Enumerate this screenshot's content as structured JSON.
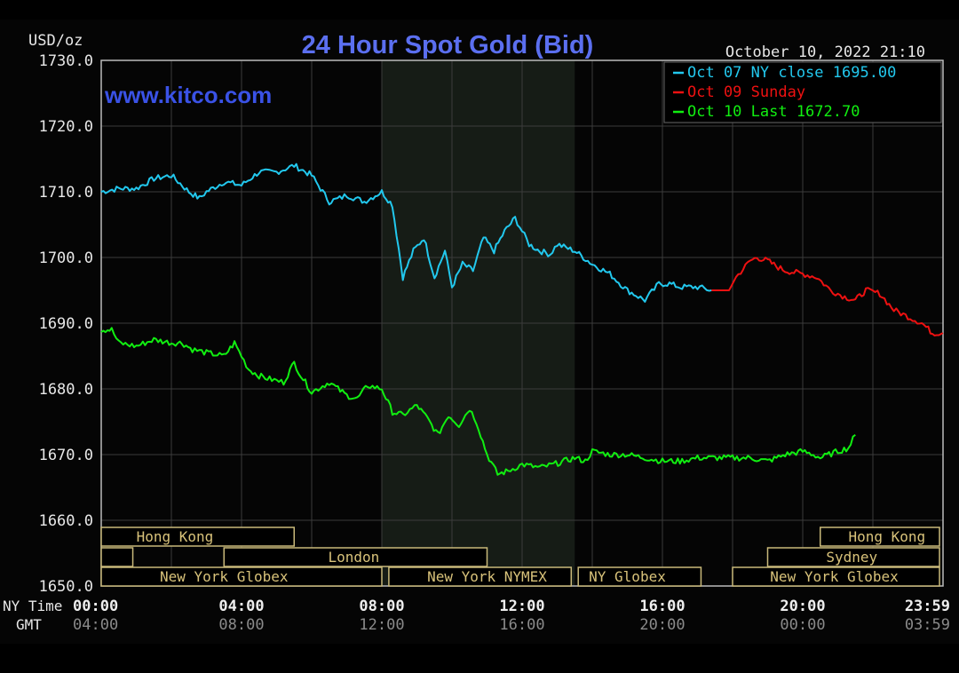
{
  "chart_data": {
    "type": "line",
    "title": "24 Hour Spot Gold (Bid)",
    "watermark": "www.kitco.com",
    "unit_label": "USD/oz",
    "timestamp": "October 10, 2022 21:10",
    "ylim": [
      1650,
      1730
    ],
    "y_ticks": [
      "1730.0",
      "1720.0",
      "1710.0",
      "1700.0",
      "1690.0",
      "1680.0",
      "1670.0",
      "1660.0",
      "1650.0"
    ],
    "x_range_hours": [
      0,
      24
    ],
    "x_row_labels": {
      "ny": "NY Time",
      "gmt": "GMT"
    },
    "x_ticks_ny": [
      "00:00",
      "04:00",
      "08:00",
      "12:00",
      "16:00",
      "20:00",
      "23:59"
    ],
    "x_ticks_gmt": [
      "04:00",
      "08:00",
      "12:00",
      "16:00",
      "20:00",
      "00:00",
      "03:59"
    ],
    "grid": true,
    "legend_position": "top-right",
    "legend": [
      {
        "label": "Oct 07 NY close 1695.00",
        "color": "#22c8ee"
      },
      {
        "label": "Oct 09 Sunday",
        "color": "#ee1111"
      },
      {
        "label": "Oct 10 Last 1672.70",
        "color": "#11ee11"
      }
    ],
    "shaded_session_hours": [
      8.0,
      13.5
    ],
    "series": [
      {
        "name": "Oct 07 NY close 1695.00",
        "color": "#22c8ee",
        "x": [
          0,
          0.5,
          1,
          1.5,
          2,
          2.5,
          2.8,
          3,
          3.5,
          4,
          4.5,
          5,
          5.5,
          6,
          6.5,
          6.8,
          7,
          7.5,
          8,
          8.3,
          8.6,
          8.9,
          9.2,
          9.5,
          9.8,
          10,
          10.3,
          10.6,
          10.9,
          11.2,
          11.5,
          11.8,
          12.2,
          12.5,
          12.8,
          13,
          13.5,
          14,
          14.5,
          15,
          15.5,
          15.9,
          16.2,
          16.5,
          17,
          17.4
        ],
        "y": [
          1710,
          1710.5,
          1710.5,
          1712,
          1712.5,
          1710,
          1709,
          1710,
          1711.5,
          1711,
          1713,
          1713,
          1714,
          1712.5,
          1708.5,
          1709,
          1709.5,
          1708.5,
          1710,
          1708,
          1697,
          1701,
          1703,
          1697,
          1701,
          1695.5,
          1699,
          1698,
          1703,
          1701,
          1704,
          1706,
          1702,
          1701,
          1700.5,
          1702,
          1701,
          1699,
          1697.5,
          1695,
          1693.5,
          1696,
          1696,
          1695.5,
          1695.5,
          1695
        ]
      },
      {
        "name": "Oct 09 Sunday",
        "color": "#ee1111",
        "x": [
          17.4,
          17.9,
          18.1,
          18.5,
          18.7,
          19,
          19.3,
          19.5,
          20,
          20.4,
          20.8,
          21.2,
          21.5,
          21.8,
          22.2,
          22.6,
          23,
          23.4,
          23.7,
          24
        ],
        "y": [
          1695,
          1695,
          1697,
          1699.5,
          1700,
          1699.5,
          1698.5,
          1698,
          1697.5,
          1697,
          1695,
          1694,
          1693.5,
          1695,
          1694.5,
          1692,
          1691,
          1690,
          1688.5,
          1688.5
        ]
      },
      {
        "name": "Oct 10 Last 1672.70",
        "color": "#11ee11",
        "x": [
          0,
          0.3,
          0.5,
          1,
          1.5,
          2,
          2.3,
          2.6,
          3,
          3.5,
          3.8,
          4.2,
          4.5,
          4.8,
          5.2,
          5.5,
          5.7,
          6,
          6.5,
          7,
          7.3,
          7.6,
          8,
          8.3,
          8.6,
          9,
          9.3,
          9.6,
          9.9,
          10.2,
          10.5,
          10.7,
          11,
          11.3,
          11.6,
          12,
          12.5,
          12.9,
          13.2,
          13.5,
          13.8,
          14,
          14.5,
          15,
          15.5,
          16,
          16.5,
          17,
          17.5,
          18,
          18.5,
          19,
          19.5,
          20,
          20.3,
          20.5,
          21,
          21.3,
          21.5
        ],
        "y": [
          1689,
          1689,
          1687,
          1686.5,
          1687.5,
          1687,
          1687,
          1686,
          1685.5,
          1685,
          1687,
          1683,
          1682,
          1681.5,
          1681,
          1684,
          1682,
          1679.5,
          1681,
          1679,
          1678.5,
          1680.5,
          1680,
          1676.5,
          1676,
          1677.5,
          1675.5,
          1673,
          1676,
          1674.5,
          1677,
          1675,
          1670,
          1667,
          1667.5,
          1668.5,
          1668,
          1668.5,
          1669,
          1669.5,
          1669,
          1670.5,
          1670,
          1670,
          1669.5,
          1669,
          1669,
          1669.5,
          1669.5,
          1669.5,
          1669.5,
          1669,
          1670,
          1670.5,
          1670,
          1669.5,
          1670.5,
          1671,
          1673
        ]
      }
    ],
    "market_sessions": [
      {
        "label": "Hong Kong",
        "row": 0,
        "start": 0,
        "end": 5.5,
        "label_center": 2.1
      },
      {
        "label": "London",
        "row": 1,
        "start": 3.5,
        "end": 11.0,
        "label_center": 7.2
      },
      {
        "label": "New York Globex",
        "row": 2,
        "start": 0,
        "end": 8.0,
        "label_center": 3.5
      },
      {
        "label": "New York NYMEX",
        "row": 2,
        "start": 8.2,
        "end": 13.4,
        "label_center": 11.0
      },
      {
        "label": "NY Globex",
        "row": 2,
        "start": 13.6,
        "end": 17.1,
        "label_center": 15.0
      },
      {
        "label": "Hong Kong",
        "row": 0,
        "start": 20.5,
        "end": 23.9,
        "label_center": 22.4
      },
      {
        "label": "Sydney",
        "row": 1,
        "start": 19.0,
        "end": 23.9,
        "label_center": 21.4
      },
      {
        "label": "New York Globex",
        "row": 2,
        "start": 18.0,
        "end": 23.9,
        "label_center": 20.9
      },
      {
        "label": "",
        "row": 1,
        "start": 0,
        "end": 0.9,
        "label_center": 0.45
      }
    ]
  }
}
